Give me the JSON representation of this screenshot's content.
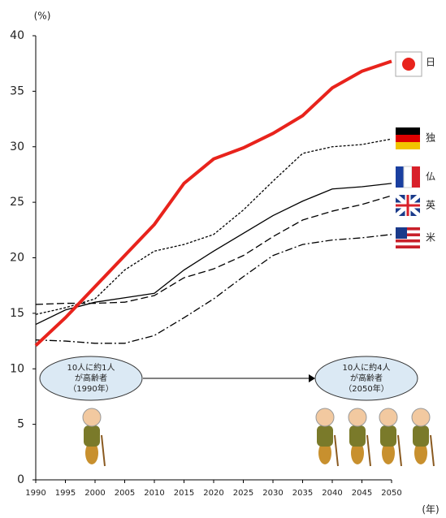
{
  "chart_data": {
    "type": "line",
    "y_label": "(%)",
    "x_label": "(年)",
    "x": [
      1990,
      1995,
      2000,
      2005,
      2010,
      2015,
      2020,
      2025,
      2030,
      2035,
      2040,
      2045,
      2050
    ],
    "xlim": [
      1990,
      2050
    ],
    "xticks": [
      1990,
      1995,
      2000,
      2005,
      2010,
      2015,
      2020,
      2025,
      2030,
      2035,
      2040,
      2045,
      2050
    ],
    "ylim": [
      0,
      40
    ],
    "yticks": [
      0,
      5,
      10,
      15,
      20,
      25,
      30,
      35,
      40
    ],
    "series": [
      {
        "name": "日",
        "color": "#e8231c",
        "width": 4,
        "dash": "none",
        "values": [
          12.1,
          14.6,
          17.4,
          20.2,
          23.0,
          26.7,
          28.9,
          29.9,
          31.2,
          32.8,
          35.3,
          36.8,
          37.7
        ]
      },
      {
        "name": "独",
        "color": "#000000",
        "width": 1.3,
        "dash": "3,2",
        "values": [
          14.9,
          15.5,
          16.3,
          18.9,
          20.6,
          21.2,
          22.1,
          24.3,
          26.9,
          29.4,
          30.0,
          30.2,
          30.7
        ]
      },
      {
        "name": "仏",
        "color": "#000000",
        "width": 1.3,
        "dash": "none",
        "values": [
          14.0,
          15.3,
          16.0,
          16.4,
          16.8,
          18.9,
          20.6,
          22.2,
          23.8,
          25.1,
          26.2,
          26.4,
          26.7
        ]
      },
      {
        "name": "英",
        "color": "#000000",
        "width": 1.3,
        "dash": "9,4",
        "values": [
          15.8,
          15.9,
          15.9,
          16.0,
          16.6,
          18.2,
          19.0,
          20.2,
          21.9,
          23.4,
          24.2,
          24.8,
          25.6
        ]
      },
      {
        "name": "米",
        "color": "#000000",
        "width": 1.3,
        "dash": "9,3,2,3",
        "values": [
          12.6,
          12.5,
          12.3,
          12.3,
          13.0,
          14.6,
          16.3,
          18.3,
          20.2,
          21.2,
          21.6,
          21.8,
          22.1
        ]
      }
    ],
    "annotations": [
      {
        "lines": [
          "10人に約1人",
          "が高齢者",
          "（1990年）"
        ]
      },
      {
        "lines": [
          "10人に約4人",
          "が高齢者",
          "（2050年）"
        ]
      }
    ]
  }
}
